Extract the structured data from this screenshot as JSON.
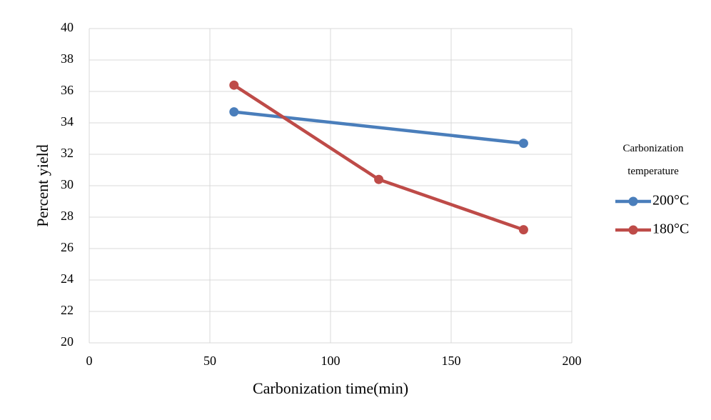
{
  "chart_data": {
    "type": "line",
    "x_label": "Carbonization time(min)",
    "y_label": "Percent yield",
    "legend_title": "Carbonization temperature",
    "xlim": [
      0,
      200
    ],
    "xticks": [
      0,
      50,
      100,
      150,
      200
    ],
    "ylim": [
      20,
      40
    ],
    "yticks": [
      20,
      22,
      24,
      26,
      28,
      30,
      32,
      34,
      36,
      38,
      40
    ],
    "grid": true,
    "legend": "right",
    "series": [
      {
        "name": "200°C",
        "color": "#4a7ebb",
        "x": [
          60,
          180
        ],
        "values": [
          34.7,
          32.7
        ]
      },
      {
        "name": "180°C",
        "color": "#be4b48",
        "x": [
          60,
          120,
          180
        ],
        "values": [
          36.4,
          30.4,
          27.2
        ]
      }
    ]
  }
}
